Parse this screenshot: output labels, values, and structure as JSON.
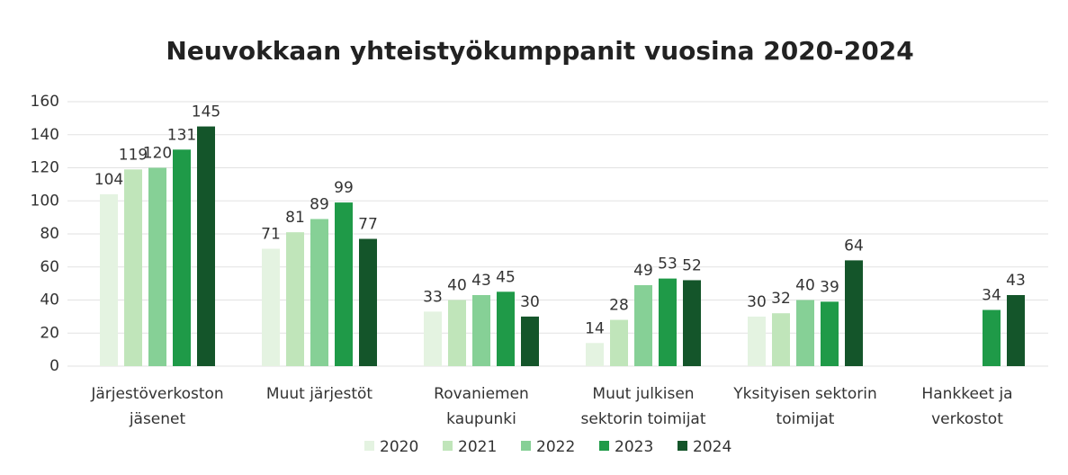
{
  "chart_data": {
    "type": "bar",
    "title": "Neuvokkaan yhteistyökumppanit vuosina 2020-2024",
    "categories": [
      "Järjestöverkoston jäsenet",
      "Muut järjestöt",
      "Rovaniemen kaupunki",
      "Muut julkisen sektorin toimijat",
      "Yksityisen sektorin toimijat",
      "Hankkeet ja verkostot"
    ],
    "series": [
      {
        "name": "2020",
        "color": "#e4f3e1",
        "values": [
          104,
          71,
          33,
          14,
          30,
          null
        ]
      },
      {
        "name": "2021",
        "color": "#c0e5ba",
        "values": [
          119,
          81,
          40,
          28,
          32,
          null
        ]
      },
      {
        "name": "2022",
        "color": "#86d096",
        "values": [
          120,
          89,
          43,
          49,
          40,
          null
        ]
      },
      {
        "name": "2023",
        "color": "#1f9a48",
        "values": [
          131,
          99,
          45,
          53,
          39,
          34
        ]
      },
      {
        "name": "2024",
        "color": "#14552a",
        "values": [
          145,
          77,
          30,
          52,
          64,
          43
        ]
      }
    ],
    "ylim": [
      0,
      160
    ],
    "yticks": [
      0,
      20,
      40,
      60,
      80,
      100,
      120,
      140,
      160
    ],
    "grid": true,
    "legend": "bottom"
  }
}
